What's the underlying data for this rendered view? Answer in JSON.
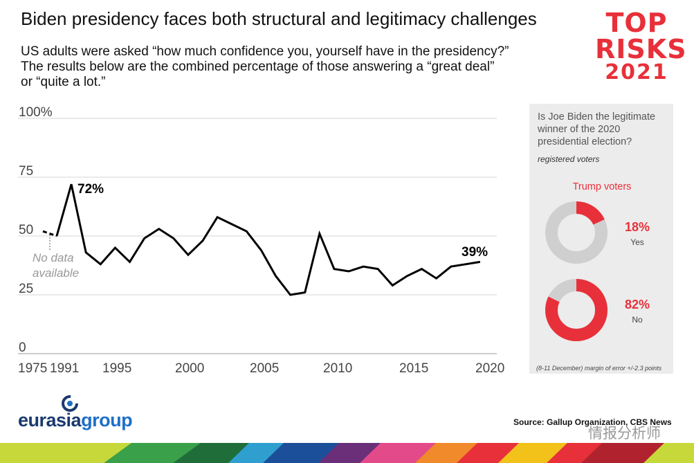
{
  "header": {
    "title": "Biden presidency faces both structural and legitimacy challenges",
    "subtitle_lines": [
      "US adults were asked “how much confidence you, yourself have in the presidency?”",
      "The results below are the combined percentage of those answering a “great deal”",
      "or “quite a lot.”"
    ]
  },
  "badge": {
    "line1": "TOP",
    "line2": "RISKS",
    "line3": "2021"
  },
  "chart_data": {
    "type": "line",
    "y_ticks": [
      "100%",
      "75",
      "50",
      "25",
      "0"
    ],
    "ylim": [
      0,
      100
    ],
    "x_tick_labels": [
      "1975",
      "1991",
      "1995",
      "2000",
      "2005",
      "2010",
      "2015",
      "2020"
    ],
    "grid": true,
    "series": [
      {
        "style": "dashed",
        "x": [
          1975,
          1991
        ],
        "y": [
          52,
          50
        ]
      },
      {
        "style": "solid",
        "x": [
          1991,
          1992,
          1993,
          1994,
          1995,
          1996,
          1997,
          1998,
          1999,
          2000,
          2001,
          2002,
          2003,
          2004,
          2005,
          2006,
          2007,
          2008,
          2009,
          2010,
          2011,
          2012,
          2013,
          2014,
          2015,
          2016,
          2017,
          2018,
          2019,
          2020
        ],
        "y": [
          50,
          72,
          43,
          38,
          45,
          39,
          49,
          53,
          49,
          42,
          48,
          58,
          55,
          52,
          44,
          33,
          25,
          26,
          51,
          36,
          35,
          37,
          36,
          29,
          33,
          36,
          32,
          37,
          38,
          39
        ]
      }
    ],
    "annotations": {
      "peak_label": "72%",
      "last_label": "39%",
      "no_data_line1": "No data",
      "no_data_line2": "available"
    }
  },
  "side_panel": {
    "question": "Is Joe Biden the legitimate winner of the 2020 presidential election?",
    "population": "registered voters",
    "group": "Trump voters",
    "results": [
      {
        "percent_label": "18%",
        "answer": "Yes",
        "value": 18
      },
      {
        "percent_label": "82%",
        "answer": "No",
        "value": 82
      }
    ],
    "note": "(8-11 December) margin of error +/-2.3 points"
  },
  "footer": {
    "logo_part1": "eurasia",
    "logo_part2": "group",
    "source": "Source: Gallup Organization, CBS News",
    "watermark": "情报分析师"
  },
  "colors": {
    "accent_red": "#e8303a",
    "donut_grey": "#cfcfcf",
    "line": "#000000",
    "panel_bg": "#ececec",
    "brand_blue": "#1a3a6e"
  }
}
